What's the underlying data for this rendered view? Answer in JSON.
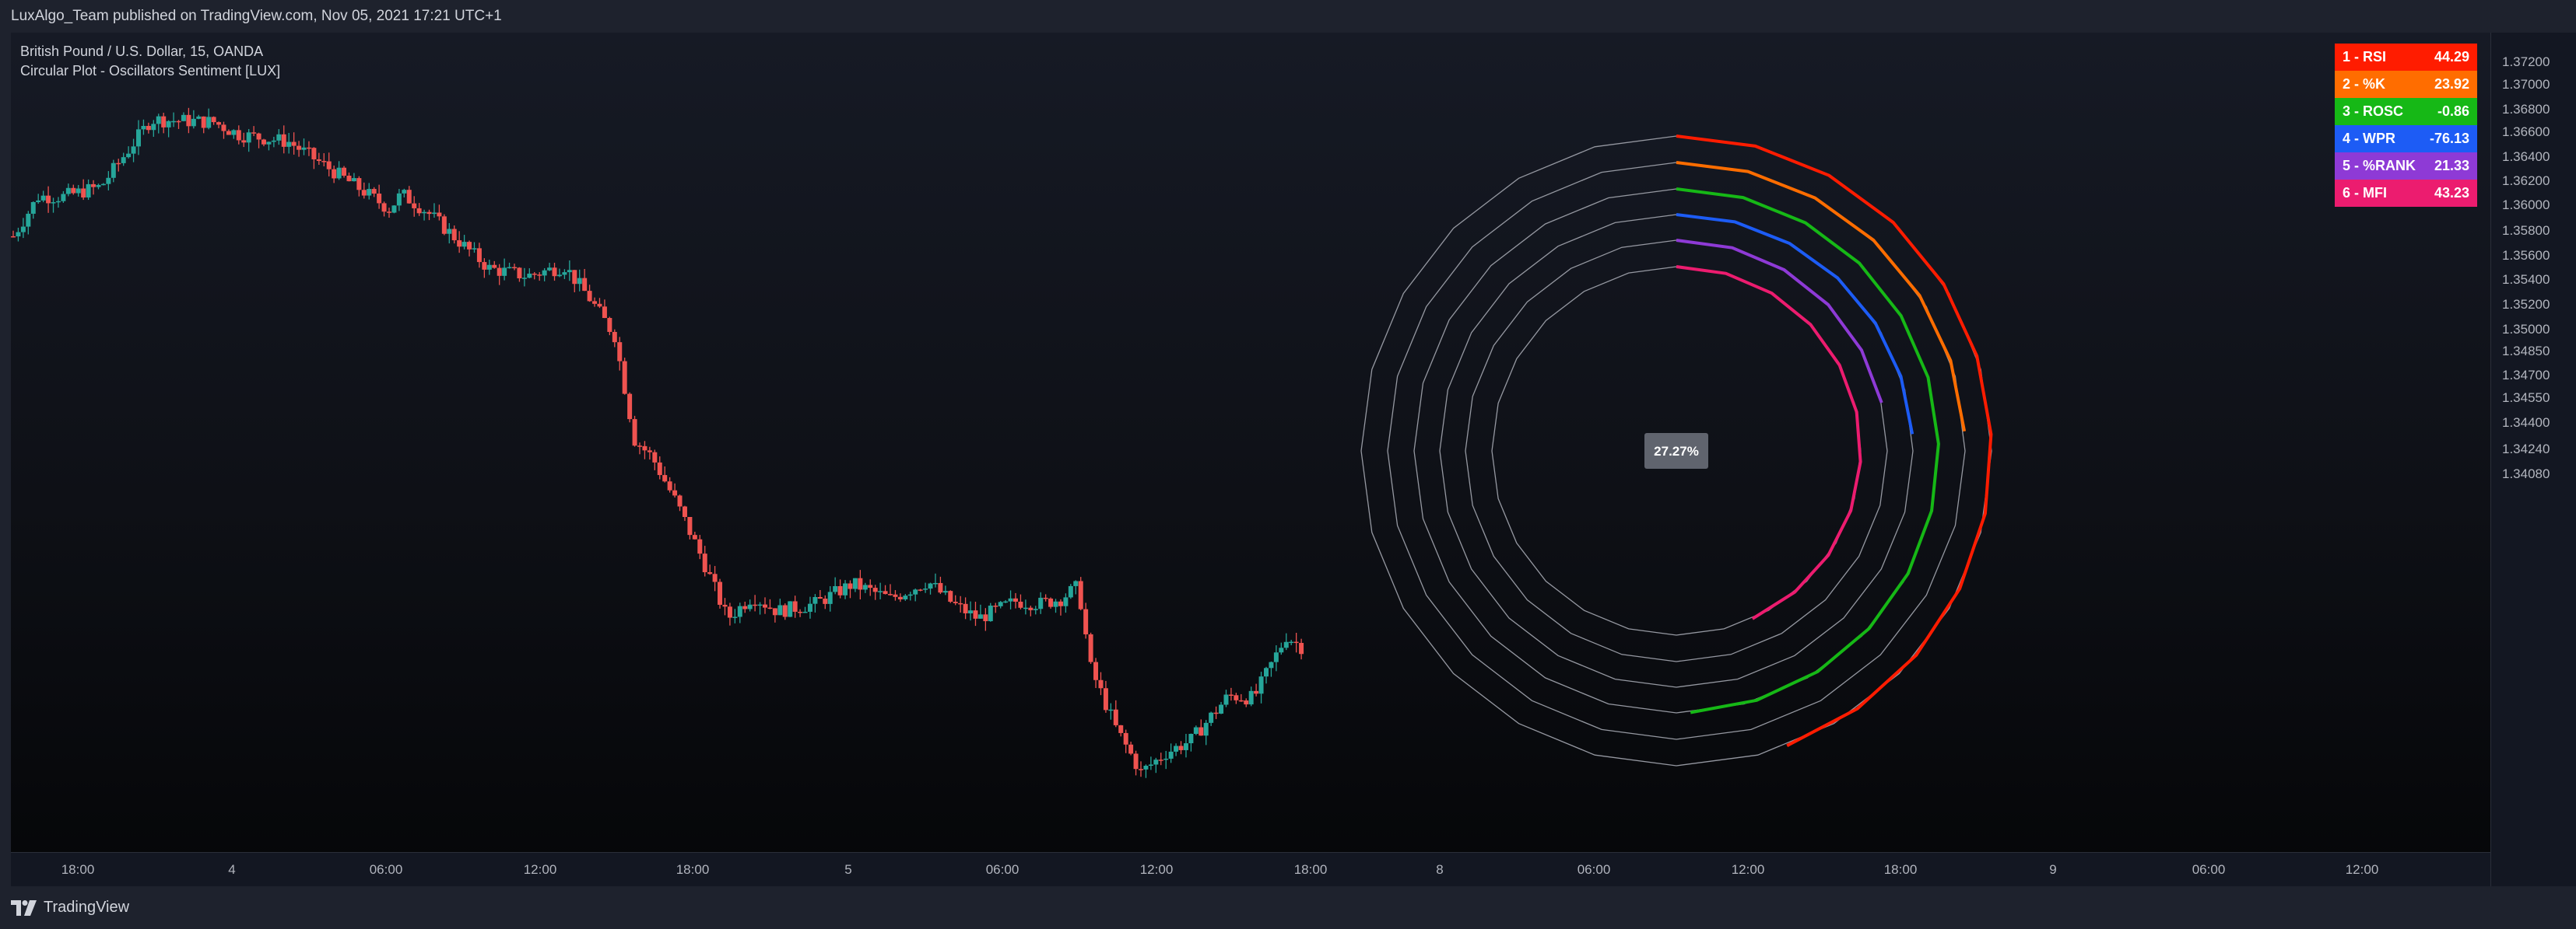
{
  "header": {
    "publish_text": "LuxAlgo_Team published on TradingView.com, Nov 05, 2021 17:21 UTC+1"
  },
  "legend": {
    "symbol": "British Pound / U.S. Dollar, 15, OANDA",
    "indicator": "Circular Plot - Oscillators Sentiment [LUX]"
  },
  "center_label": "27.27%",
  "oscillators": [
    {
      "label": "1 - RSI",
      "value": "44.29",
      "color": "#ff1c00"
    },
    {
      "label": "2 - %K",
      "value": "23.92",
      "color": "#ff6d00"
    },
    {
      "label": "3 - ROSC",
      "value": "-0.86",
      "color": "#16b816"
    },
    {
      "label": "4 - WPR",
      "value": "-76.13",
      "color": "#1d5cf5"
    },
    {
      "label": "5 - %RANK",
      "value": "21.33",
      "color": "#8e3ad6"
    },
    {
      "label": "6 - MFI",
      "value": "43.23",
      "color": "#ec1c6f"
    }
  ],
  "price_axis": [
    "1.37200",
    "1.37000",
    "1.36800",
    "1.36600",
    "1.36400",
    "1.36200",
    "1.36000",
    "1.35800",
    "1.35600",
    "1.35400",
    "1.35200",
    "1.35000",
    "1.34850",
    "1.34700",
    "1.34550",
    "1.34400",
    "1.34240",
    "1.34080"
  ],
  "time_axis": [
    "18:00",
    "4",
    "06:00",
    "12:00",
    "18:00",
    "5",
    "06:00",
    "12:00",
    "18:00",
    "8",
    "06:00",
    "12:00",
    "18:00",
    "9",
    "06:00",
    "12:00"
  ],
  "footer": {
    "brand": "TradingView"
  },
  "colors": {
    "up": "#26a69a",
    "down": "#ef5350",
    "ring": "#9598a1"
  },
  "chart_data": {
    "type": "candlestick",
    "title": "British Pound / U.S. Dollar, 15, OANDA",
    "ylim": [
      1.34,
      1.373
    ],
    "close_path": [
      [
        0,
        1.3648
      ],
      [
        10,
        1.3664
      ],
      [
        20,
        1.3664
      ],
      [
        35,
        1.3668
      ],
      [
        55,
        1.3695
      ],
      [
        80,
        1.3694
      ],
      [
        90,
        1.3689
      ],
      [
        110,
        1.3686
      ],
      [
        125,
        1.3676
      ],
      [
        140,
        1.3666
      ],
      [
        150,
        1.3659
      ],
      [
        155,
        1.3665
      ],
      [
        165,
        1.3658
      ],
      [
        180,
        1.3644
      ],
      [
        190,
        1.3635
      ],
      [
        205,
        1.3632
      ],
      [
        220,
        1.3636
      ],
      [
        230,
        1.3623
      ],
      [
        240,
        1.3608
      ],
      [
        248,
        1.3566
      ],
      [
        255,
        1.3559
      ],
      [
        265,
        1.354
      ],
      [
        275,
        1.3518
      ],
      [
        285,
        1.3494
      ],
      [
        295,
        1.3503
      ],
      [
        305,
        1.3497
      ],
      [
        320,
        1.35
      ],
      [
        335,
        1.3508
      ],
      [
        350,
        1.3502
      ],
      [
        365,
        1.3509
      ],
      [
        375,
        1.35
      ],
      [
        385,
        1.3494
      ],
      [
        400,
        1.3501
      ],
      [
        410,
        1.35
      ],
      [
        418,
        1.3502
      ],
      [
        425,
        1.3507
      ],
      [
        430,
        1.3474
      ],
      [
        440,
        1.345
      ],
      [
        450,
        1.3432
      ],
      [
        460,
        1.344
      ],
      [
        470,
        1.3445
      ],
      [
        485,
        1.3463
      ],
      [
        495,
        1.3462
      ],
      [
        508,
        1.3487
      ],
      [
        515,
        1.3482
      ]
    ]
  }
}
